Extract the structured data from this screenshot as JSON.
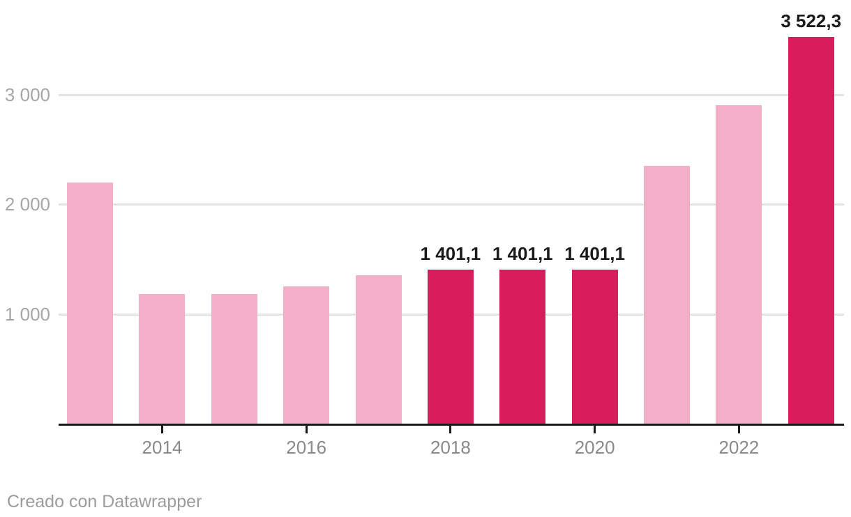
{
  "chart_data": {
    "type": "bar",
    "title": "",
    "categories": [
      "2013",
      "2014",
      "2015",
      "2016",
      "2017",
      "2018",
      "2019",
      "2020",
      "2021",
      "2022",
      "2023"
    ],
    "values": [
      2200,
      1180,
      1180,
      1250,
      1350,
      1401.1,
      1401.1,
      1401.1,
      2350,
      2900,
      3522.3
    ],
    "highlighted": [
      false,
      false,
      false,
      false,
      false,
      true,
      true,
      true,
      false,
      false,
      true
    ],
    "bar_value_labels": [
      "",
      "",
      "",
      "",
      "",
      "1 401,1",
      "1 401,1",
      "1 401,1",
      "",
      "",
      "3 522,3"
    ],
    "x_axis": {
      "tick_indices": [
        1,
        3,
        5,
        7,
        9
      ],
      "tick_labels": [
        "2014",
        "2016",
        "2018",
        "2020",
        "2022"
      ]
    },
    "y_axis": {
      "tick_values": [
        1000,
        2000,
        3000
      ],
      "tick_labels": [
        "1 000",
        "2 000",
        "3 000"
      ]
    },
    "ylim": [
      0,
      3860
    ],
    "grid": true,
    "legend": "none",
    "colors": {
      "bar_default": "#f3afc7",
      "bar_highlight": "#d91c5c",
      "grid_line": "#e4e4e4",
      "axis_line": "#1a1a1a",
      "x_tick_label": "#8a8a8a",
      "y_tick_label": "#a6a6a6",
      "value_label": "#1a1a1a"
    }
  },
  "footer": {
    "attribution": "Creado con Datawrapper",
    "text_color": "#9c9c9c"
  }
}
